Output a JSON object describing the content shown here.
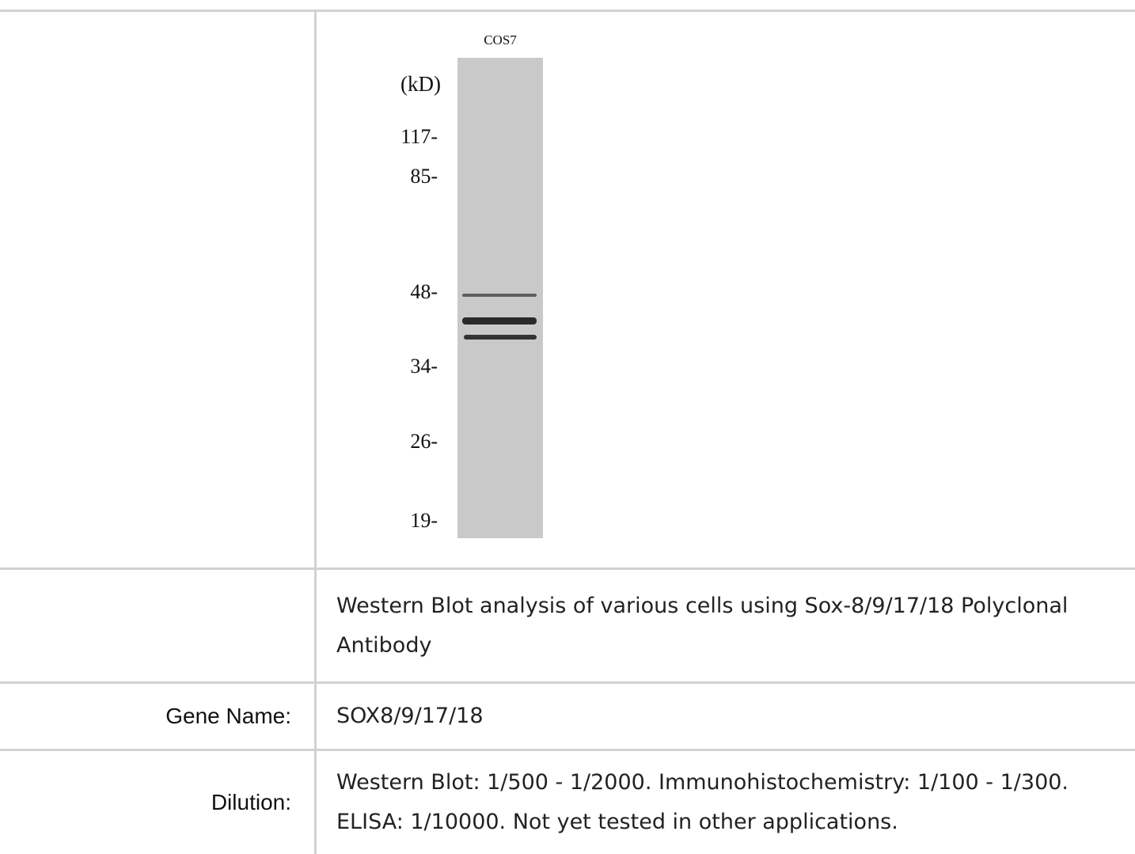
{
  "blot": {
    "lane_label": "COS7",
    "unit_label": "(kD)",
    "markers": [
      "117-",
      "85-",
      "48-",
      "34-",
      "26-",
      "19-"
    ]
  },
  "caption": "Western Blot analysis of various cells using Sox-8/9/17/18 Polyclonal Antibody",
  "rows": [
    {
      "label": "Gene Name:",
      "value": "SOX8/9/17/18"
    },
    {
      "label": "Dilution:",
      "value": "Western Blot: 1/500 - 1/2000. Immunohistochemistry: 1/100 - 1/300. ELISA: 1/10000. Not yet tested in other applications."
    }
  ]
}
